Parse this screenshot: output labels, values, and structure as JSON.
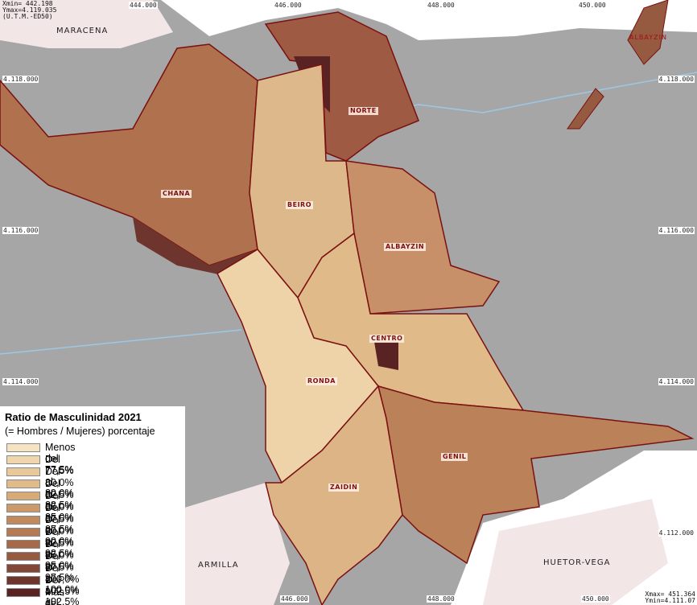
{
  "corner_top": [
    "Xmin=  442.198",
    "Ymax=4.119.035",
    "(U.T.M.-ED50)"
  ],
  "corner_bottom": [
    "Xmax=  451.364",
    "Ymin=4.111.07"
  ],
  "coords_top": [
    "444.000",
    "446.000",
    "448.000",
    "450.000"
  ],
  "coords_bottom": [
    "446.000",
    "448.000",
    "450.000"
  ],
  "coords_left": [
    "4.118.000",
    "4.116.000",
    "4.114.000"
  ],
  "coords_right": [
    "4.118.000",
    "4.116.000",
    "4.114.000",
    "4.112.000"
  ],
  "municipalities": [
    "MARACENA",
    "ARMILLA",
    "HUETOR-VEGA",
    "ALBAYZIN"
  ],
  "districts": [
    "NORTE",
    "CHANA",
    "BEIRO",
    "ALBAYZIN",
    "CENTRO",
    "RONDA",
    "GENIL",
    "ZAIDIN"
  ],
  "legend": {
    "title": "Ratio de Masculinidad 2021",
    "subtitle": "(= Hombres / Mujeres) porcentaje",
    "items": [
      {
        "label": "Menos del 77,5%",
        "color": "#f6e3c2"
      },
      {
        "label": "Del 77,5% al 80,0%",
        "color": "#f0d6ad"
      },
      {
        "label": "Del 80,0% al 82,5%",
        "color": "#e9c99a"
      },
      {
        "label": "Del 82,5% al 85,0%",
        "color": "#e0ba88"
      },
      {
        "label": "Del 85,0% al 87,5%",
        "color": "#d7aa78"
      },
      {
        "label": "Del 87,5% al 90,0%",
        "color": "#cc9a6a"
      },
      {
        "label": "Del 90,0% al 92,5%",
        "color": "#c08a5e"
      },
      {
        "label": "Del 92,5% al 95,0%",
        "color": "#b47a54"
      },
      {
        "label": "Del 95,0% al 97,5%",
        "color": "#a66a4a"
      },
      {
        "label": "Del 97,5% al 100,0%",
        "color": "#965a41"
      },
      {
        "label": "Del 100,0% al 102,5%",
        "color": "#824737"
      },
      {
        "label": "Del 102,5% al 105,0%",
        "color": "#6d352d"
      },
      {
        "label": "Más del 105,0%",
        "color": "#592324"
      }
    ]
  }
}
